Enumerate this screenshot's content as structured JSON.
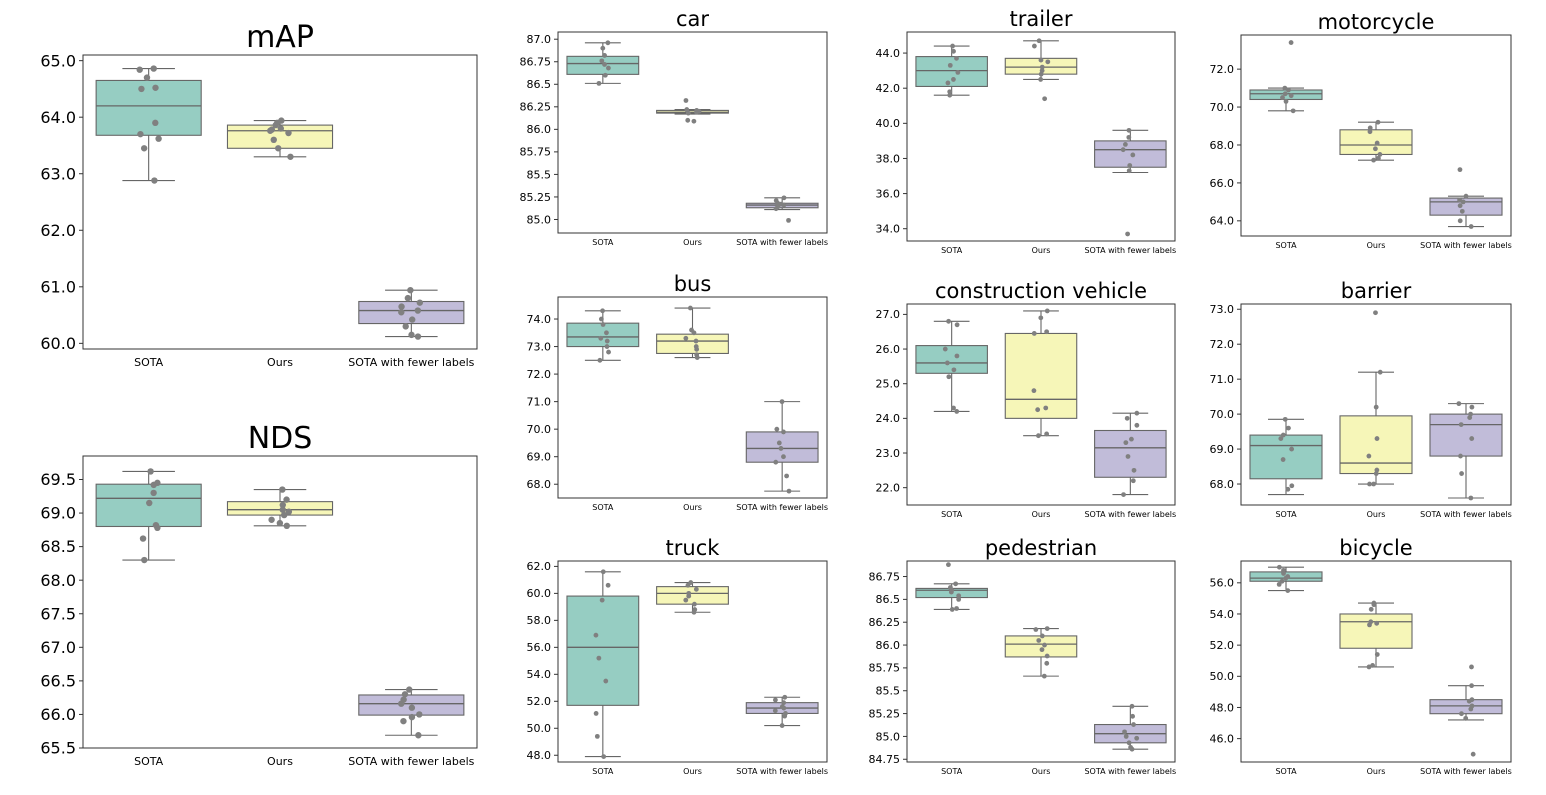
{
  "colors": {
    "SOTA": "#96cdc2",
    "Ours": "#f6f6b8",
    "SOTA with fewer labels": "#c1bcd9",
    "line": "#666666",
    "point": "#808080",
    "frame": "#333333"
  },
  "chart_data": [
    {
      "id": "map",
      "type": "box",
      "title": "mAP",
      "categories": [
        "SOTA",
        "Ours",
        "SOTA with fewer labels"
      ],
      "ylim": [
        59.9,
        65.1
      ],
      "yticks": [
        60.0,
        61.0,
        62.0,
        63.0,
        64.0,
        65.0
      ],
      "tick_labels": [
        "60.0",
        "61.0",
        "62.0",
        "63.0",
        "64.0",
        "65.0"
      ],
      "boxes": [
        {
          "q1": 63.68,
          "median": 64.2,
          "q3": 64.65,
          "whisker_low": 62.88,
          "whisker_high": 64.86
        },
        {
          "q1": 63.45,
          "median": 63.76,
          "q3": 63.86,
          "whisker_low": 63.3,
          "whisker_high": 63.94
        },
        {
          "q1": 60.35,
          "median": 60.58,
          "q3": 60.74,
          "whisker_low": 60.12,
          "whisker_high": 60.94
        }
      ],
      "points": [
        [
          64.86,
          64.84,
          64.7,
          64.52,
          64.5,
          63.9,
          63.7,
          63.62,
          63.45,
          62.88
        ],
        [
          63.94,
          63.9,
          63.86,
          63.8,
          63.78,
          63.76,
          63.72,
          63.6,
          63.45,
          63.3
        ],
        [
          60.94,
          60.8,
          60.72,
          60.65,
          60.58,
          60.55,
          60.42,
          60.3,
          60.15,
          60.12
        ]
      ]
    },
    {
      "id": "nds",
      "type": "box",
      "title": "NDS",
      "categories": [
        "SOTA",
        "Ours",
        "SOTA with fewer labels"
      ],
      "ylim": [
        65.5,
        69.85
      ],
      "yticks": [
        65.5,
        66.0,
        66.5,
        67.0,
        67.5,
        68.0,
        68.5,
        69.0,
        69.5
      ],
      "tick_labels": [
        "65.5",
        "66.0",
        "66.5",
        "67.0",
        "67.5",
        "68.0",
        "68.5",
        "69.0",
        "69.5"
      ],
      "boxes": [
        {
          "q1": 68.8,
          "median": 69.22,
          "q3": 69.43,
          "whisker_low": 68.3,
          "whisker_high": 69.62
        },
        {
          "q1": 68.97,
          "median": 69.05,
          "q3": 69.17,
          "whisker_low": 68.81,
          "whisker_high": 69.35
        },
        {
          "q1": 65.99,
          "median": 66.16,
          "q3": 66.29,
          "whisker_low": 65.69,
          "whisker_high": 66.37
        }
      ],
      "points": [
        [
          69.62,
          69.45,
          69.42,
          69.3,
          69.15,
          68.82,
          68.78,
          68.62,
          68.3
        ],
        [
          69.35,
          69.2,
          69.12,
          69.05,
          69.02,
          68.97,
          68.9,
          68.85,
          68.81
        ],
        [
          66.37,
          66.3,
          66.22,
          66.16,
          66.1,
          66.0,
          65.96,
          65.9,
          65.69
        ]
      ]
    },
    {
      "id": "car",
      "type": "box",
      "title": "car",
      "categories": [
        "SOTA",
        "Ours",
        "SOTA with fewer labels"
      ],
      "ylim": [
        84.85,
        87.08
      ],
      "yticks": [
        85.0,
        85.25,
        85.5,
        85.75,
        86.0,
        86.25,
        86.5,
        86.75,
        87.0
      ],
      "tick_labels": [
        "85.0",
        "85.25",
        "85.5",
        "85.75",
        "86.0",
        "86.25",
        "86.5",
        "86.75",
        "87.0"
      ],
      "boxes": [
        {
          "q1": 86.61,
          "median": 86.73,
          "q3": 86.81,
          "whisker_low": 86.51,
          "whisker_high": 86.96
        },
        {
          "q1": 86.18,
          "median": 86.19,
          "q3": 86.21,
          "whisker_low": 86.17,
          "whisker_high": 86.22
        },
        {
          "q1": 85.13,
          "median": 85.16,
          "q3": 85.18,
          "whisker_low": 85.11,
          "whisker_high": 85.24
        }
      ],
      "points": [
        [
          86.96,
          86.9,
          86.82,
          86.76,
          86.72,
          86.68,
          86.6,
          86.51
        ],
        [
          86.32,
          86.22,
          86.21,
          86.2,
          86.19,
          86.18,
          86.1,
          86.09
        ],
        [
          85.24,
          85.21,
          85.18,
          85.17,
          85.16,
          85.14,
          85.12,
          84.99
        ]
      ]
    },
    {
      "id": "trailer",
      "type": "box",
      "title": "trailer",
      "categories": [
        "SOTA",
        "Ours",
        "SOTA with fewer labels"
      ],
      "ylim": [
        33.3,
        45.2
      ],
      "yticks": [
        34.0,
        36.0,
        38.0,
        40.0,
        42.0,
        44.0
      ],
      "tick_labels": [
        "34.0",
        "36.0",
        "38.0",
        "40.0",
        "42.0",
        "44.0"
      ],
      "boxes": [
        {
          "q1": 42.1,
          "median": 43.0,
          "q3": 43.8,
          "whisker_low": 41.6,
          "whisker_high": 44.4
        },
        {
          "q1": 42.8,
          "median": 43.2,
          "q3": 43.7,
          "whisker_low": 42.5,
          "whisker_high": 44.7
        },
        {
          "q1": 37.5,
          "median": 38.5,
          "q3": 39.0,
          "whisker_low": 37.2,
          "whisker_high": 39.6
        }
      ],
      "points": [
        [
          44.4,
          44.1,
          43.7,
          43.3,
          42.9,
          42.5,
          42.3,
          41.8,
          41.6
        ],
        [
          44.7,
          44.4,
          43.6,
          43.5,
          43.2,
          43.0,
          42.8,
          42.5,
          41.4
        ],
        [
          39.6,
          39.2,
          38.8,
          38.5,
          38.2,
          37.6,
          37.3,
          33.7
        ]
      ]
    },
    {
      "id": "motorcycle",
      "type": "box",
      "title": "motorcycle",
      "categories": [
        "SOTA",
        "Ours",
        "SOTA with fewer labels"
      ],
      "ylim": [
        63.2,
        73.8
      ],
      "yticks": [
        64.0,
        66.0,
        68.0,
        70.0,
        72.0
      ],
      "tick_labels": [
        "64.0",
        "66.0",
        "68.0",
        "70.0",
        "72.0"
      ],
      "boxes": [
        {
          "q1": 70.4,
          "median": 70.7,
          "q3": 70.9,
          "whisker_low": 69.8,
          "whisker_high": 71.0
        },
        {
          "q1": 67.5,
          "median": 68.0,
          "q3": 68.8,
          "whisker_low": 67.2,
          "whisker_high": 69.2
        },
        {
          "q1": 64.3,
          "median": 65.0,
          "q3": 65.2,
          "whisker_low": 63.7,
          "whisker_high": 65.3
        }
      ],
      "points": [
        [
          73.4,
          71.0,
          70.9,
          70.7,
          70.6,
          70.5,
          70.3,
          69.8
        ],
        [
          69.2,
          68.9,
          68.7,
          68.1,
          67.8,
          67.5,
          67.3,
          67.2
        ],
        [
          66.7,
          65.3,
          65.1,
          65.0,
          64.8,
          64.5,
          64.0,
          63.7
        ]
      ]
    },
    {
      "id": "bus",
      "type": "box",
      "title": "bus",
      "categories": [
        "SOTA",
        "Ours",
        "SOTA with fewer labels"
      ],
      "ylim": [
        67.5,
        74.8
      ],
      "yticks": [
        68.0,
        69.0,
        70.0,
        71.0,
        72.0,
        73.0,
        74.0
      ],
      "tick_labels": [
        "68.0",
        "69.0",
        "70.0",
        "71.0",
        "72.0",
        "73.0",
        "74.0"
      ],
      "boxes": [
        {
          "q1": 73.0,
          "median": 73.35,
          "q3": 73.85,
          "whisker_low": 72.5,
          "whisker_high": 74.3
        },
        {
          "q1": 72.75,
          "median": 73.2,
          "q3": 73.45,
          "whisker_low": 72.6,
          "whisker_high": 74.4
        },
        {
          "q1": 68.8,
          "median": 69.3,
          "q3": 69.9,
          "whisker_low": 67.75,
          "whisker_high": 71.0
        }
      ],
      "points": [
        [
          74.3,
          74.0,
          73.8,
          73.5,
          73.3,
          73.2,
          73.0,
          72.8,
          72.5
        ],
        [
          74.4,
          73.6,
          73.5,
          73.3,
          73.2,
          73.0,
          72.9,
          72.7,
          72.6
        ],
        [
          71.0,
          70.0,
          69.9,
          69.5,
          69.3,
          69.0,
          68.8,
          68.3,
          67.75
        ]
      ]
    },
    {
      "id": "construction",
      "type": "box",
      "title": "construction vehicle",
      "categories": [
        "SOTA",
        "Ours",
        "SOTA with fewer labels"
      ],
      "ylim": [
        21.5,
        27.3
      ],
      "yticks": [
        22.0,
        23.0,
        24.0,
        25.0,
        26.0,
        27.0
      ],
      "tick_labels": [
        "22.0",
        "23.0",
        "24.0",
        "25.0",
        "26.0",
        "27.0"
      ],
      "boxes": [
        {
          "q1": 25.3,
          "median": 25.6,
          "q3": 26.1,
          "whisker_low": 24.2,
          "whisker_high": 26.8
        },
        {
          "q1": 24.0,
          "median": 24.55,
          "q3": 26.45,
          "whisker_low": 23.5,
          "whisker_high": 27.1
        },
        {
          "q1": 22.3,
          "median": 23.15,
          "q3": 23.65,
          "whisker_low": 21.8,
          "whisker_high": 24.15
        }
      ],
      "points": [
        [
          26.8,
          26.7,
          26.0,
          25.8,
          25.6,
          25.4,
          25.2,
          24.3,
          24.2
        ],
        [
          27.1,
          26.9,
          26.5,
          26.45,
          24.8,
          24.3,
          24.25,
          23.55,
          23.5
        ],
        [
          24.15,
          24.0,
          23.8,
          23.4,
          23.3,
          22.9,
          22.5,
          22.2,
          21.8
        ]
      ]
    },
    {
      "id": "barrier",
      "type": "box",
      "title": "barrier",
      "categories": [
        "SOTA",
        "Ours",
        "SOTA with fewer labels"
      ],
      "ylim": [
        67.4,
        73.15
      ],
      "yticks": [
        68.0,
        69.0,
        70.0,
        71.0,
        72.0,
        73.0
      ],
      "tick_labels": [
        "68.0",
        "69.0",
        "70.0",
        "71.0",
        "72.0",
        "73.0"
      ],
      "boxes": [
        {
          "q1": 68.15,
          "median": 69.1,
          "q3": 69.4,
          "whisker_low": 67.7,
          "whisker_high": 69.85
        },
        {
          "q1": 68.3,
          "median": 68.6,
          "q3": 69.95,
          "whisker_low": 68.0,
          "whisker_high": 71.2
        },
        {
          "q1": 68.8,
          "median": 69.7,
          "q3": 70.0,
          "whisker_low": 67.6,
          "whisker_high": 70.3
        }
      ],
      "points": [
        [
          69.85,
          69.6,
          69.4,
          69.3,
          69.0,
          68.7,
          67.95,
          67.85
        ],
        [
          72.9,
          71.2,
          70.2,
          69.3,
          68.8,
          68.4,
          68.3,
          68.0,
          68.0
        ],
        [
          70.3,
          70.2,
          70.0,
          69.9,
          69.7,
          69.3,
          68.8,
          68.3,
          67.6
        ]
      ]
    },
    {
      "id": "truck",
      "type": "box",
      "title": "truck",
      "categories": [
        "SOTA",
        "Ours",
        "SOTA with fewer labels"
      ],
      "ylim": [
        47.5,
        62.4
      ],
      "yticks": [
        48.0,
        50.0,
        52.0,
        54.0,
        56.0,
        58.0,
        60.0,
        62.0
      ],
      "tick_labels": [
        "48.0",
        "50.0",
        "52.0",
        "54.0",
        "56.0",
        "58.0",
        "60.0",
        "62.0"
      ],
      "boxes": [
        {
          "q1": 51.7,
          "median": 56.0,
          "q3": 59.8,
          "whisker_low": 47.9,
          "whisker_high": 61.6
        },
        {
          "q1": 59.2,
          "median": 60.0,
          "q3": 60.5,
          "whisker_low": 58.6,
          "whisker_high": 60.8
        },
        {
          "q1": 51.1,
          "median": 51.5,
          "q3": 51.9,
          "whisker_low": 50.2,
          "whisker_high": 52.3
        }
      ],
      "points": [
        [
          61.6,
          60.6,
          59.5,
          56.9,
          55.2,
          53.5,
          51.1,
          49.4,
          47.9
        ],
        [
          60.8,
          60.6,
          60.3,
          60.0,
          59.8,
          59.5,
          59.2,
          58.8,
          58.6
        ],
        [
          52.3,
          52.1,
          51.9,
          51.6,
          51.5,
          51.3,
          51.1,
          50.9,
          50.2
        ]
      ]
    },
    {
      "id": "pedestrian",
      "type": "box",
      "title": "pedestrian",
      "categories": [
        "SOTA",
        "Ours",
        "SOTA with fewer labels"
      ],
      "ylim": [
        84.72,
        86.92
      ],
      "yticks": [
        84.75,
        85.0,
        85.25,
        85.5,
        85.75,
        86.0,
        86.25,
        86.5,
        86.75
      ],
      "tick_labels": [
        "84.75",
        "85.0",
        "85.25",
        "85.5",
        "85.75",
        "86.0",
        "86.25",
        "86.5",
        "86.75"
      ],
      "boxes": [
        {
          "q1": 86.52,
          "median": 86.6,
          "q3": 86.62,
          "whisker_low": 86.39,
          "whisker_high": 86.67
        },
        {
          "q1": 85.87,
          "median": 86.01,
          "q3": 86.1,
          "whisker_low": 85.66,
          "whisker_high": 86.18
        },
        {
          "q1": 84.93,
          "median": 85.03,
          "q3": 85.13,
          "whisker_low": 84.86,
          "whisker_high": 85.33
        }
      ],
      "points": [
        [
          86.88,
          86.67,
          86.63,
          86.6,
          86.58,
          86.54,
          86.5,
          86.4,
          86.39
        ],
        [
          86.18,
          86.17,
          86.1,
          86.05,
          86.0,
          85.95,
          85.88,
          85.8,
          85.66
        ],
        [
          85.33,
          85.22,
          85.13,
          85.05,
          85.0,
          84.98,
          84.93,
          84.88,
          84.86
        ]
      ]
    },
    {
      "id": "bicycle",
      "type": "box",
      "title": "bicycle",
      "categories": [
        "SOTA",
        "Ours",
        "SOTA with fewer labels"
      ],
      "ylim": [
        44.5,
        57.4
      ],
      "yticks": [
        46.0,
        48.0,
        50.0,
        52.0,
        54.0,
        56.0
      ],
      "tick_labels": [
        "46.0",
        "48.0",
        "50.0",
        "52.0",
        "54.0",
        "56.0"
      ],
      "boxes": [
        {
          "q1": 56.1,
          "median": 56.3,
          "q3": 56.7,
          "whisker_low": 55.5,
          "whisker_high": 57.0
        },
        {
          "q1": 51.8,
          "median": 53.5,
          "q3": 54.0,
          "whisker_low": 50.6,
          "whisker_high": 54.7
        },
        {
          "q1": 47.6,
          "median": 48.1,
          "q3": 48.5,
          "whisker_low": 47.2,
          "whisker_high": 49.4
        }
      ],
      "points": [
        [
          57.0,
          56.8,
          56.6,
          56.4,
          56.3,
          56.1,
          55.9,
          55.5
        ],
        [
          54.7,
          54.6,
          54.3,
          53.5,
          53.4,
          53.3,
          51.4,
          50.7,
          50.6
        ],
        [
          50.6,
          49.4,
          48.5,
          48.4,
          48.1,
          47.9,
          47.6,
          47.3,
          45.0
        ]
      ]
    }
  ]
}
